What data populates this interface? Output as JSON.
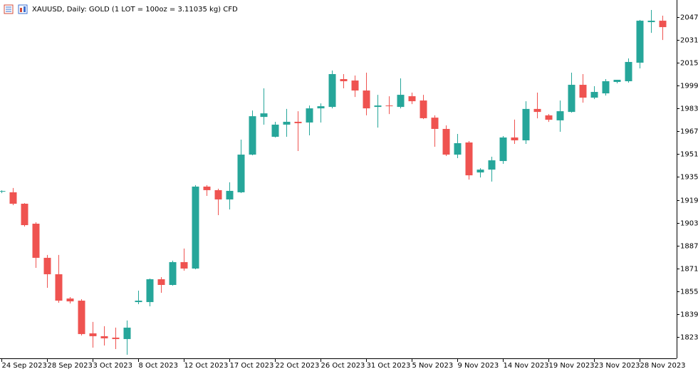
{
  "chart_data": {
    "type": "candlestick",
    "title": "XAUUSD, Daily:  GOLD (1 LOT = 100oz = 3.11035 kg) CFD",
    "categories": [
      "24 Sep 2023",
      null,
      null,
      null,
      "28 Sep 2023",
      null,
      null,
      null,
      "3 Oct 2023",
      null,
      null,
      null,
      "8 Oct 2023",
      null,
      null,
      null,
      "12 Oct 2023",
      null,
      null,
      null,
      "17 Oct 2023",
      null,
      null,
      null,
      "22 Oct 2023",
      null,
      null,
      null,
      "26 Oct 2023",
      null,
      null,
      null,
      "31 Oct 2023",
      null,
      null,
      null,
      "5 Nov 2023",
      null,
      null,
      null,
      "9 Nov 2023",
      null,
      null,
      null,
      "14 Nov 2023",
      null,
      null,
      null,
      "19 Nov 2023",
      null,
      null,
      null,
      "23 Nov 2023",
      null,
      null,
      null,
      "28 Nov 2023",
      null,
      null
    ],
    "open": [
      1925,
      1924.6,
      1916.6,
      1902.6,
      1878.7,
      1867.2,
      1850.2,
      1848.7,
      1825.8,
      1823.8,
      1822.8,
      1821.8,
      1847.7,
      1847.7,
      1863.7,
      1859.7,
      1875.7,
      1871.2,
      1928.6,
      1926.1,
      1919.6,
      1924.6,
      1951.0,
      1977.4,
      1963.5,
      1972.0,
      1974.0,
      1973.5,
      1983.4,
      1984.4,
      2003.9,
      2002.9,
      1995.9,
      1984.4,
      1985.4,
      1984.4,
      1991.9,
      1988.9,
      1976.9,
      1969.0,
      1951.0,
      1959.5,
      1938.5,
      1940.5,
      1946.5,
      1963.0,
      1961.0,
      1983.0,
      1978.5,
      1975.0,
      1980.9,
      1999.9,
      1990.9,
      1993.9,
      2001.9,
      2002.4,
      2015.4,
      2043.8,
      2044.8
    ],
    "high": [
      1926,
      1927.6,
      1917.0,
      1903.6,
      1880.7,
      1880.7,
      1851.2,
      1849.7,
      1833.8,
      1830.8,
      1829.8,
      1834.8,
      1855.7,
      1864.2,
      1865.2,
      1876.7,
      1885.2,
      1929.6,
      1929.6,
      1927.1,
      1931.6,
      1961.5,
      1981.9,
      1997.4,
      1974.0,
      1983.0,
      1981.4,
      1985.4,
      1986.9,
      2009.9,
      2007.4,
      2006.4,
      2008.4,
      1992.9,
      1991.9,
      2004.4,
      1994.4,
      1992.9,
      1978.5,
      1971.5,
      1965.5,
      1960.5,
      1941.5,
      1949.5,
      1964.0,
      1975.5,
      1988.4,
      1994.4,
      1979.4,
      1988.9,
      2008.4,
      2007.4,
      1998.9,
      2003.9,
      2003.4,
      2018.4,
      2045.3,
      2052.3,
      2048.3
    ],
    "low": [
      1924,
      1915.6,
      1900.6,
      1871.7,
      1857.7,
      1847.2,
      1846.7,
      1824.3,
      1815.8,
      1817.3,
      1814.8,
      1810.8,
      1846.2,
      1844.7,
      1854.2,
      1859.2,
      1869.7,
      1870.7,
      1922.1,
      1908.6,
      1912.6,
      1924.1,
      1950.5,
      1972.0,
      1963.0,
      1963.5,
      1953.5,
      1964.5,
      1973.5,
      1983.4,
      1997.4,
      1991.4,
      1978.5,
      1969.9,
      1979.4,
      1983.4,
      1986.4,
      1975.9,
      1956.5,
      1950.0,
      1948.5,
      1933.5,
      1935.0,
      1932.1,
      1944.5,
      1958.5,
      1958.5,
      1976.4,
      1973.9,
      1967.0,
      1980.4,
      1987.4,
      1989.9,
      1992.4,
      2000.9,
      2001.4,
      2011.4,
      2036.3,
      2031.3
    ],
    "close": [
      1925.5,
      1916.6,
      1901.6,
      1878.7,
      1867.2,
      1848.7,
      1848.2,
      1825.3,
      1823.8,
      1822.3,
      1821.8,
      1829.8,
      1848.7,
      1863.7,
      1859.7,
      1875.7,
      1871.2,
      1928.6,
      1926.1,
      1919.6,
      1925.6,
      1951.0,
      1977.9,
      1979.9,
      1972.0,
      1974.0,
      1973.0,
      1983.4,
      1984.9,
      2007.4,
      2002.4,
      1995.9,
      1983.4,
      1985.4,
      1984.9,
      1992.9,
      1988.4,
      1976.5,
      1969.0,
      1951.0,
      1959.0,
      1936.5,
      1940.5,
      1947.0,
      1963.0,
      1961.0,
      1983.0,
      1980.9,
      1975.4,
      1981.4,
      1999.9,
      1990.9,
      1994.9,
      2002.4,
      2003.4,
      2015.9,
      2044.8,
      2044.8,
      2040.3
    ],
    "up_color": "#26a69a",
    "down_color": "#ef5350",
    "ylim": [
      1808.3,
      2059.3
    ],
    "yticks": [
      {
        "value": 2047.3,
        "label": "2047.30"
      },
      {
        "value": 2031.3,
        "label": "2031.30"
      },
      {
        "value": 2015.3,
        "label": "2015.30"
      },
      {
        "value": 1999.3,
        "label": "1999.30"
      },
      {
        "value": 1983.3,
        "label": "1983.30"
      },
      {
        "value": 1967.3,
        "label": "1967.30"
      },
      {
        "value": 1951.3,
        "label": "1951.30"
      },
      {
        "value": 1935.3,
        "label": "1935.30"
      },
      {
        "value": 1919.3,
        "label": "1919.30"
      },
      {
        "value": 1903.3,
        "label": "1903.30"
      },
      {
        "value": 1887.3,
        "label": "1887.30"
      },
      {
        "value": 1871.3,
        "label": "1871.30"
      },
      {
        "value": 1855.3,
        "label": "1855.30"
      },
      {
        "value": 1839.3,
        "label": "1839.30"
      },
      {
        "value": 1823.3,
        "label": "1823.30"
      }
    ],
    "grid": false
  }
}
